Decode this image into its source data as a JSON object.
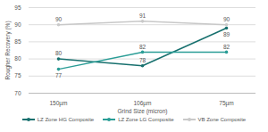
{
  "chart_data": {
    "type": "line",
    "x_label": "Grind Size (micron)",
    "y_label": "Rougher Recovery (%)",
    "categories": [
      "150µm",
      "106µm",
      "75µm"
    ],
    "series": [
      {
        "name": "LZ Zone HG Composite",
        "color": "#17706e",
        "values": [
          80,
          78,
          89
        ]
      },
      {
        "name": "LZ Zone LG Composite",
        "color": "#2a9d96",
        "values": [
          77,
          82,
          82
        ]
      },
      {
        "name": "VB Zone Composite",
        "color": "#c9c9c9",
        "values": [
          90,
          91,
          90
        ]
      }
    ],
    "ylim": [
      70,
      95
    ],
    "yticks": [
      70,
      75,
      80,
      85,
      90,
      95
    ],
    "grid": true,
    "data_labels": true,
    "legend": "bottom",
    "marker": "circle"
  }
}
